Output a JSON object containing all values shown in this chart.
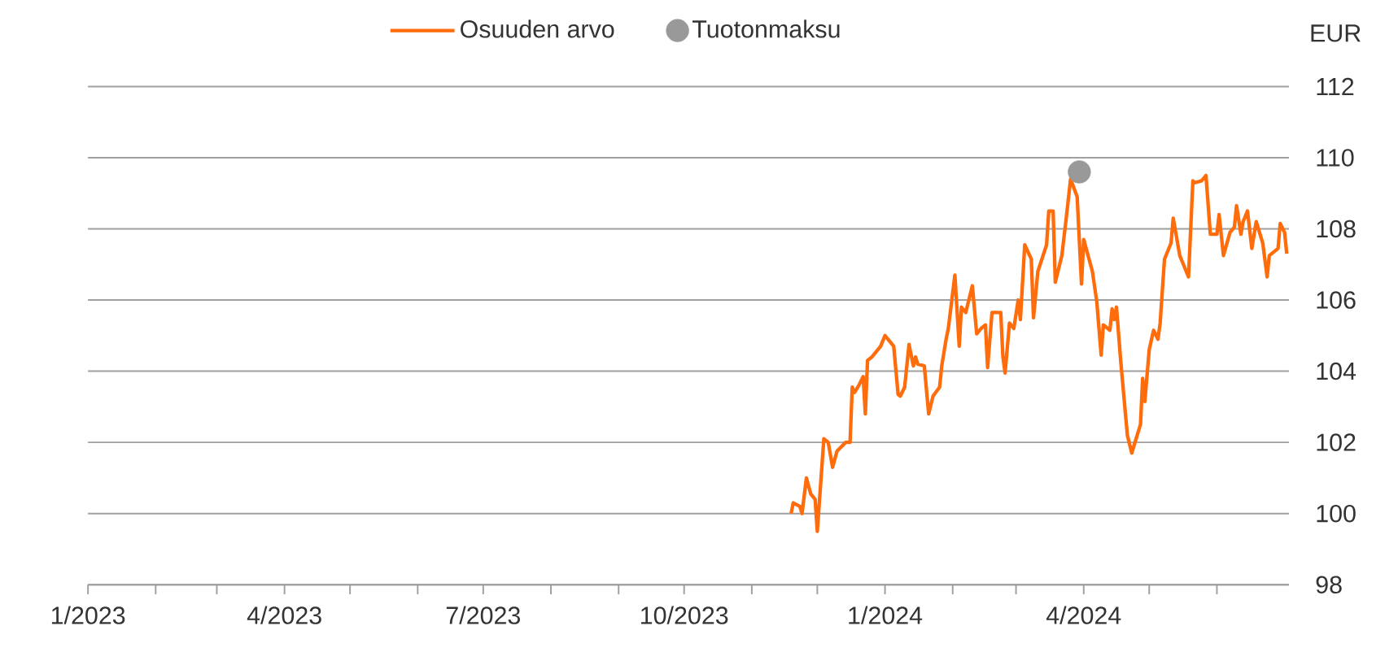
{
  "chart_data": {
    "type": "line",
    "ylabel": "EUR",
    "legend": "top",
    "grid": "y",
    "xlim": [
      "2023-01-01",
      "2024-07-04"
    ],
    "ylim": [
      98,
      112
    ],
    "yticks": [
      98,
      100,
      102,
      104,
      106,
      108,
      110,
      112
    ],
    "xticks": [
      {
        "value": "2023-01",
        "label": "1/2023"
      },
      {
        "value": "2023-02",
        "label": null
      },
      {
        "value": "2023-03",
        "label": null
      },
      {
        "value": "2023-04",
        "label": "4/2023"
      },
      {
        "value": "2023-05",
        "label": null
      },
      {
        "value": "2023-06",
        "label": null
      },
      {
        "value": "2023-07",
        "label": "7/2023"
      },
      {
        "value": "2023-08",
        "label": null
      },
      {
        "value": "2023-09",
        "label": null
      },
      {
        "value": "2023-10",
        "label": "10/2023"
      },
      {
        "value": "2023-11",
        "label": null
      },
      {
        "value": "2023-12",
        "label": null
      },
      {
        "value": "2024-01",
        "label": "1/2024"
      },
      {
        "value": "2024-02",
        "label": null
      },
      {
        "value": "2024-03",
        "label": null
      },
      {
        "value": "2024-04",
        "label": "4/2024"
      },
      {
        "value": "2024-05",
        "label": null
      },
      {
        "value": "2024-06",
        "label": null
      }
    ],
    "series": [
      {
        "name": "Osuuden arvo",
        "color": "#ff6c0c",
        "x": [
          "2023-11-19",
          "2023-11-20",
          "2023-11-23",
          "2023-11-24",
          "2023-11-26",
          "2023-11-28",
          "2023-11-30",
          "2023-12-01",
          "2023-12-04",
          "2023-12-06",
          "2023-12-08",
          "2023-12-10",
          "2023-12-14",
          "2023-12-16",
          "2023-12-17",
          "2023-12-18",
          "2023-12-20",
          "2023-12-22",
          "2023-12-23",
          "2023-12-24",
          "2023-12-26",
          "2023-12-30",
          "2024-01-01",
          "2024-01-05",
          "2024-01-07",
          "2024-01-08",
          "2024-01-10",
          "2024-01-12",
          "2024-01-14",
          "2024-01-15",
          "2024-01-16",
          "2024-01-19",
          "2024-01-21",
          "2024-01-23",
          "2024-01-26",
          "2024-01-27",
          "2024-01-29",
          "2024-01-30",
          "2024-02-02",
          "2024-02-04",
          "2024-02-05",
          "2024-02-07",
          "2024-02-10",
          "2024-02-12",
          "2024-02-14",
          "2024-02-16",
          "2024-02-17",
          "2024-02-19",
          "2024-02-21",
          "2024-02-23",
          "2024-02-24",
          "2024-02-25",
          "2024-02-27",
          "2024-02-29",
          "2024-03-02",
          "2024-03-03",
          "2024-03-05",
          "2024-03-08",
          "2024-03-09",
          "2024-03-11",
          "2024-03-15",
          "2024-03-16",
          "2024-03-18",
          "2024-03-19",
          "2024-03-22",
          "2024-03-24",
          "2024-03-26",
          "2024-03-29",
          "2024-03-31",
          "2024-04-01",
          "2024-04-05",
          "2024-04-07",
          "2024-04-09",
          "2024-04-10",
          "2024-04-13",
          "2024-04-14",
          "2024-04-15",
          "2024-04-16",
          "2024-04-18",
          "2024-04-21",
          "2024-04-23",
          "2024-04-27",
          "2024-04-28",
          "2024-04-29",
          "2024-05-01",
          "2024-05-03",
          "2024-05-05",
          "2024-05-06",
          "2024-05-08",
          "2024-05-11",
          "2024-05-12",
          "2024-05-15",
          "2024-05-17",
          "2024-05-19",
          "2024-05-21",
          "2024-05-22",
          "2024-05-25",
          "2024-05-27",
          "2024-05-29",
          "2024-06-01",
          "2024-06-02",
          "2024-06-04",
          "2024-06-07",
          "2024-06-09",
          "2024-06-10",
          "2024-06-12",
          "2024-06-13",
          "2024-06-15",
          "2024-06-17",
          "2024-06-19",
          "2024-06-22",
          "2024-06-24",
          "2024-06-25",
          "2024-06-29",
          "2024-06-30",
          "2024-07-02",
          "2024-07-03"
        ],
        "values": [
          100.0,
          100.3,
          100.2,
          100.0,
          101.0,
          100.55,
          100.4,
          99.5,
          102.1,
          102.0,
          101.3,
          101.75,
          102.0,
          102.0,
          103.55,
          103.4,
          103.6,
          103.85,
          102.8,
          104.3,
          104.4,
          104.7,
          105.0,
          104.7,
          103.35,
          103.3,
          103.55,
          104.75,
          104.15,
          104.4,
          104.2,
          104.15,
          102.8,
          103.3,
          103.55,
          104.15,
          104.9,
          105.2,
          106.7,
          104.7,
          105.8,
          105.65,
          106.4,
          105.05,
          105.2,
          105.3,
          104.1,
          105.65,
          105.65,
          105.65,
          104.4,
          103.95,
          105.35,
          105.2,
          106.0,
          105.45,
          107.55,
          107.15,
          105.5,
          106.8,
          107.55,
          108.5,
          108.5,
          106.5,
          107.25,
          108.3,
          109.4,
          108.9,
          106.45,
          107.7,
          106.8,
          105.95,
          104.45,
          105.3,
          105.15,
          105.75,
          105.45,
          105.8,
          104.25,
          102.2,
          101.7,
          102.5,
          103.8,
          103.15,
          104.6,
          105.15,
          104.9,
          105.35,
          107.15,
          107.6,
          108.3,
          107.25,
          106.95,
          106.65,
          109.35,
          109.3,
          109.35,
          109.5,
          107.85,
          107.85,
          108.4,
          107.25,
          107.9,
          108.05,
          108.65,
          107.85,
          108.2,
          108.5,
          107.45,
          108.2,
          107.6,
          106.65,
          107.25,
          107.45,
          108.15,
          107.9,
          107.3
        ]
      },
      {
        "name": "Tuotonmaksu",
        "type": "scatter",
        "color": "#999999",
        "x": [
          "2024-03-30"
        ],
        "values": [
          109.6
        ]
      }
    ]
  }
}
